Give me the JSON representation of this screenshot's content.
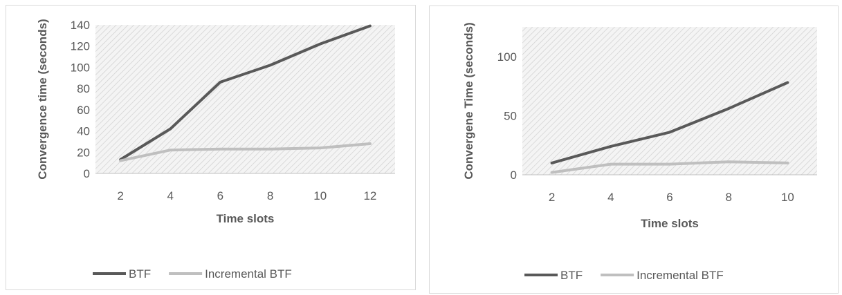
{
  "chart_data": [
    {
      "type": "line",
      "title": "",
      "xlabel": "Time slots",
      "ylabel": "Convergence time (seconds)",
      "x": [
        2,
        4,
        6,
        8,
        10,
        12
      ],
      "ylim": [
        0,
        140
      ],
      "yticks": [
        0,
        20,
        40,
        60,
        80,
        100,
        120,
        140
      ],
      "grid": false,
      "legend": "bottom",
      "series": [
        {
          "name": "BTF",
          "color": "#595959",
          "values": [
            13,
            42,
            86,
            102,
            122,
            139
          ]
        },
        {
          "name": "Incremental BTF",
          "color": "#bfbfbf",
          "values": [
            12,
            22,
            23,
            23,
            24,
            28
          ]
        }
      ]
    },
    {
      "type": "line",
      "title": "",
      "xlabel": "Time slots",
      "ylabel": "Convergene Time (seconds)",
      "x": [
        2,
        4,
        6,
        8,
        10
      ],
      "ylim": [
        0,
        125
      ],
      "yticks": [
        0,
        50,
        100
      ],
      "grid": false,
      "legend": "bottom",
      "series": [
        {
          "name": "BTF",
          "color": "#595959",
          "values": [
            10,
            24,
            36,
            56,
            78
          ]
        },
        {
          "name": "Incremental BTF",
          "color": "#bfbfbf",
          "values": [
            2,
            9,
            9,
            11,
            10
          ]
        }
      ]
    }
  ]
}
